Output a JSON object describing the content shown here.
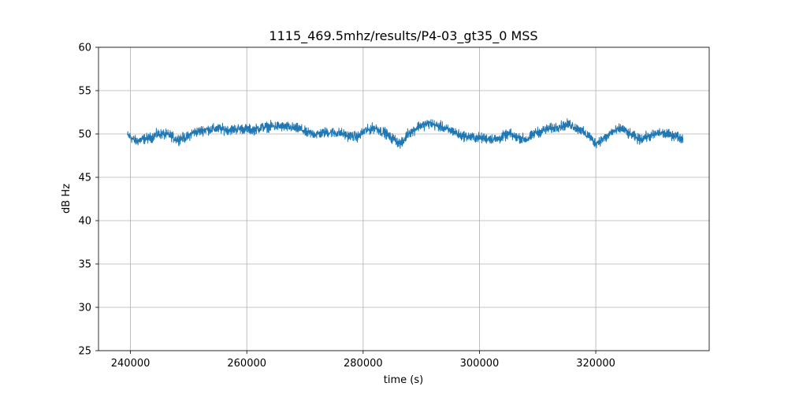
{
  "chart_data": {
    "type": "line",
    "title": "1115_469.5mhz/results/P4-03_gt35_0 MSS",
    "xlabel": "time (s)",
    "ylabel": "dB Hz",
    "xlim": [
      234500,
      339500
    ],
    "ylim": [
      25,
      60
    ],
    "xticks": [
      240000,
      260000,
      280000,
      300000,
      320000
    ],
    "xtick_labels": [
      "240000",
      "260000",
      "280000",
      "300000",
      "320000"
    ],
    "yticks": [
      25,
      30,
      35,
      40,
      45,
      50,
      55,
      60
    ],
    "ytick_labels": [
      "25",
      "30",
      "35",
      "40",
      "45",
      "50",
      "55",
      "60"
    ],
    "grid": true,
    "color": "#1f77b4",
    "series": [
      {
        "noise_amplitude_db": 0.35,
        "x": [
          239500,
          241000,
          243000,
          245000,
          246500,
          248000,
          249500,
          251000,
          253000,
          255000,
          257000,
          259000,
          261000,
          263000,
          265000,
          267000,
          269000,
          270500,
          272000,
          274000,
          276000,
          277500,
          279000,
          280500,
          282000,
          283500,
          285000,
          286500,
          288000,
          290000,
          291500,
          293000,
          295000,
          297000,
          299000,
          301000,
          303000,
          304500,
          305000,
          306500,
          308000,
          310000,
          312000,
          314000,
          315500,
          317000,
          318500,
          320000,
          321500,
          323000,
          324500,
          326000,
          327500,
          329000,
          331000,
          333000,
          335000
        ],
        "y": [
          49.8,
          49.2,
          49.5,
          50.0,
          49.9,
          49.4,
          49.6,
          50.2,
          50.5,
          50.6,
          50.5,
          50.6,
          50.5,
          50.8,
          50.9,
          50.8,
          50.6,
          50.1,
          50.0,
          50.2,
          50.1,
          49.8,
          49.7,
          50.4,
          50.7,
          50.2,
          49.5,
          48.9,
          50.2,
          51.0,
          51.2,
          50.9,
          50.4,
          49.8,
          49.6,
          49.5,
          49.4,
          49.8,
          50.0,
          49.6,
          49.4,
          50.2,
          50.6,
          50.9,
          51.1,
          50.6,
          49.9,
          49.0,
          49.5,
          50.3,
          50.6,
          49.9,
          49.4,
          49.7,
          50.1,
          49.9,
          49.5
        ]
      }
    ]
  }
}
